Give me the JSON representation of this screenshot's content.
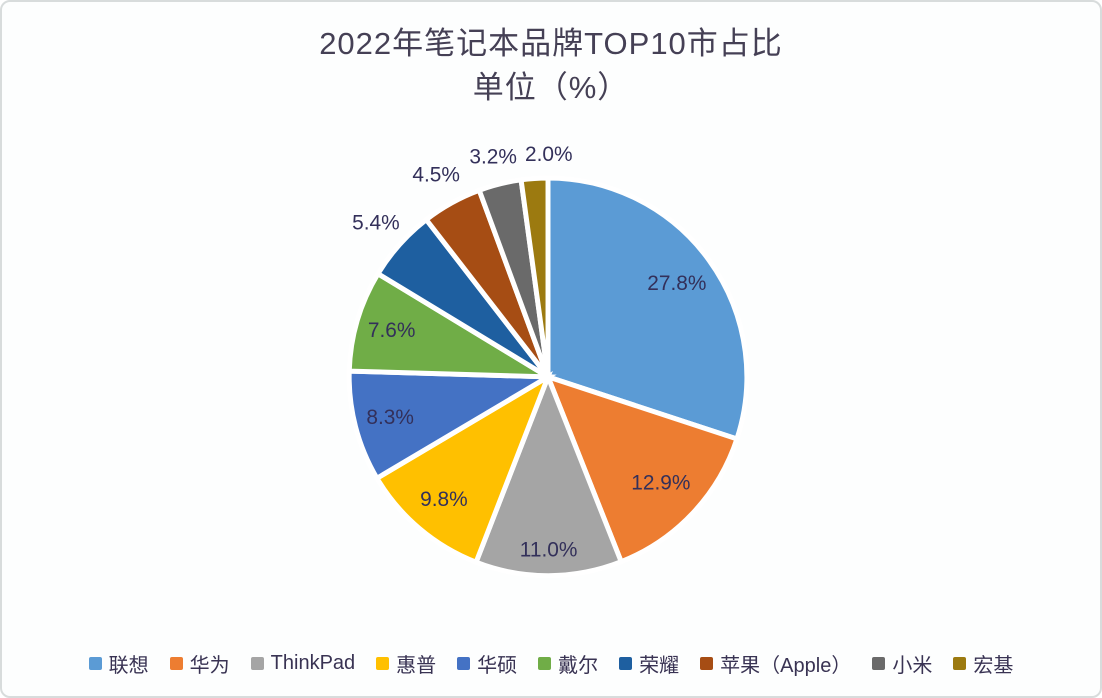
{
  "title": {
    "line1": "2022年笔记本品牌TOP10市占比",
    "line2": "单位（%）"
  },
  "colors": {
    "title_text": "#454055",
    "data_label_text": "#33305A",
    "legend_text": "#393353",
    "slice_border": "#FFFFFF",
    "background": "#FDFEFE",
    "frame_border": "#D8DCDC"
  },
  "chart_data": {
    "type": "pie",
    "title": "2022年笔记本品牌TOP10市占比",
    "subtitle": "单位（%）",
    "unit": "%",
    "categories": [
      "联想",
      "华为",
      "ThinkPad",
      "惠普",
      "华硕",
      "戴尔",
      "荣耀",
      "苹果（Apple）",
      "小米",
      "宏基"
    ],
    "values": [
      27.8,
      12.9,
      11.0,
      9.8,
      8.3,
      7.6,
      5.4,
      4.5,
      3.2,
      2.0
    ],
    "value_labels": [
      "27.8%",
      "12.9%",
      "11.0%",
      "9.8%",
      "8.3%",
      "7.6%",
      "5.4%",
      "4.5%",
      "3.2%",
      "2.0%"
    ],
    "colors": [
      "#5B9BD5",
      "#ED7D31",
      "#A5A5A5",
      "#FFC000",
      "#4472C4",
      "#70AD47",
      "#1E5FA0",
      "#A64D14",
      "#6A6A6A",
      "#9C7A10"
    ],
    "label_placement": [
      "inside",
      "inside",
      "inside",
      "inside",
      "inside",
      "inside",
      "outside",
      "outside",
      "outside",
      "outside"
    ],
    "start_at": "top",
    "direction": "clockwise",
    "legend_position": "bottom",
    "layout": {
      "center": [
        548,
        377
      ],
      "radius": 200,
      "label_font_size": 21,
      "slice_gap_stroke": 5,
      "label_radius_factors": [
        0.8,
        0.78,
        0.87,
        0.81,
        0.82,
        0.82,
        1.16,
        1.16,
        1.14,
        1.12
      ],
      "label_dx": [
        0,
        0,
        0,
        0,
        0,
        0,
        0,
        0,
        0,
        16
      ]
    }
  }
}
